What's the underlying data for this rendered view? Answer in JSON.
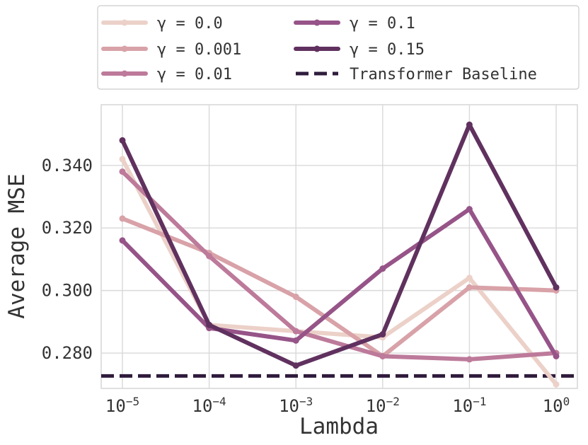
{
  "chart_data": {
    "type": "line",
    "title": "",
    "xlabel": "Lambda",
    "ylabel": "Average MSE",
    "x_scale": "log10",
    "x": [
      1e-05,
      0.0001,
      0.001,
      0.01,
      0.1,
      1
    ],
    "x_tick_labels": [
      {
        "base": "10",
        "exp": "−5"
      },
      {
        "base": "10",
        "exp": "−4"
      },
      {
        "base": "10",
        "exp": "−3"
      },
      {
        "base": "10",
        "exp": "−2"
      },
      {
        "base": "10",
        "exp": "−1"
      },
      {
        "base": "10",
        "exp": "0"
      }
    ],
    "y_ticks": [
      0.28,
      0.3,
      0.32,
      0.34
    ],
    "y_tick_labels": [
      "0.280",
      "0.300",
      "0.320",
      "0.340"
    ],
    "ylim": [
      0.2687,
      0.3594
    ],
    "grid": true,
    "legend_position": "top, outside plot",
    "series": [
      {
        "name": "γ = 0.0",
        "color": "#ecd1c9",
        "values": [
          0.342,
          0.289,
          0.287,
          0.285,
          0.304,
          0.27
        ]
      },
      {
        "name": "γ = 0.001",
        "color": "#d8a2a8",
        "values": [
          0.323,
          0.312,
          0.298,
          0.279,
          0.301,
          0.3
        ]
      },
      {
        "name": "γ = 0.01",
        "color": "#bd7a9a",
        "values": [
          0.338,
          0.311,
          0.287,
          0.279,
          0.278,
          0.28
        ]
      },
      {
        "name": "γ = 0.1",
        "color": "#965488",
        "values": [
          0.316,
          0.288,
          0.284,
          0.307,
          0.326,
          0.279
        ]
      },
      {
        "name": "γ = 0.15",
        "color": "#60315f",
        "values": [
          0.348,
          0.289,
          0.276,
          0.286,
          0.353,
          0.301
        ]
      }
    ],
    "baseline": {
      "name": "Transformer Baseline",
      "color": "#2f1b3c",
      "value": 0.2727,
      "style": "dashed"
    }
  }
}
